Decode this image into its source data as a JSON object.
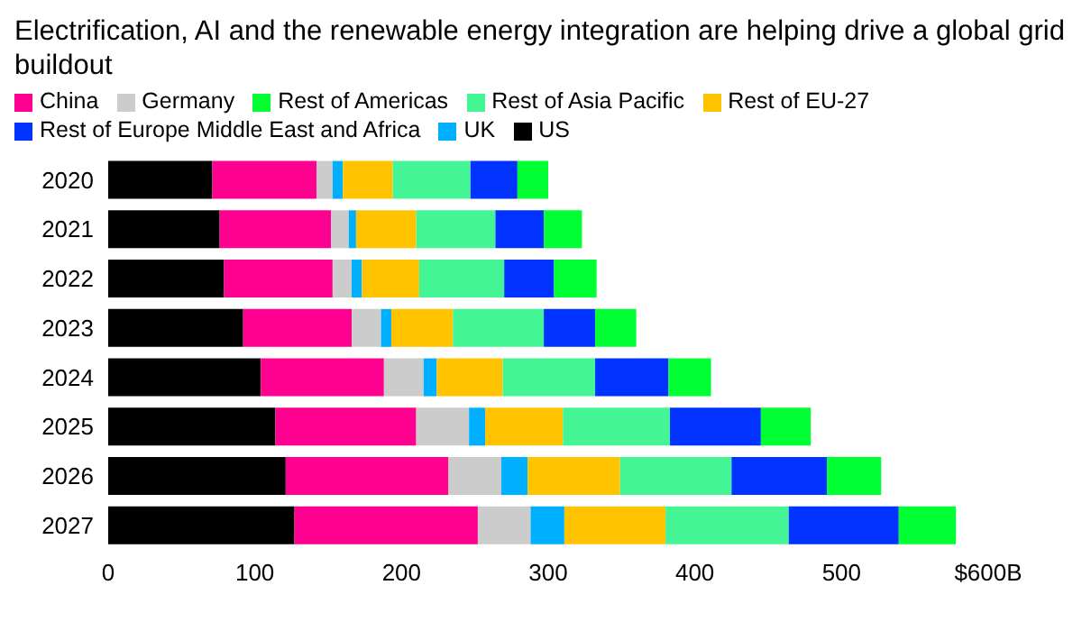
{
  "chart_data": {
    "type": "bar",
    "orientation": "horizontal",
    "stacked": true,
    "title": "Electrification, AI and the renewable energy integration are helping drive a global grid buildout",
    "categories": [
      "2020",
      "2021",
      "2022",
      "2023",
      "2024",
      "2025",
      "2026",
      "2027"
    ],
    "series": [
      {
        "name": "US",
        "color": "#000000",
        "values": [
          71,
          76,
          79,
          92,
          104,
          114,
          121,
          127
        ]
      },
      {
        "name": "China",
        "color": "#ff0090",
        "values": [
          71,
          76,
          74,
          74,
          84,
          96,
          111,
          125
        ]
      },
      {
        "name": "Germany",
        "color": "#cccccc",
        "values": [
          11,
          12,
          13,
          20,
          27,
          36,
          36,
          36
        ]
      },
      {
        "name": "UK",
        "color": "#00b0ff",
        "values": [
          7,
          5,
          7,
          7,
          9,
          11,
          18,
          23
        ]
      },
      {
        "name": "Rest of EU-27",
        "color": "#ffc300",
        "values": [
          34,
          41,
          39,
          42,
          45,
          53,
          63,
          69
        ]
      },
      {
        "name": "Rest of Asia Pacific",
        "color": "#44f596",
        "values": [
          53,
          54,
          58,
          62,
          63,
          73,
          76,
          84
        ]
      },
      {
        "name": "Rest of Europe Middle East and Africa",
        "color": "#0033ff",
        "values": [
          32,
          33,
          34,
          35,
          50,
          62,
          65,
          75
        ]
      },
      {
        "name": "Rest of Americas",
        "color": "#00ff33",
        "values": [
          21,
          26,
          29,
          28,
          29,
          34,
          37,
          39
        ]
      }
    ],
    "xlim": [
      0,
      600
    ],
    "xticks": [
      0,
      100,
      200,
      300,
      400,
      500,
      {
        "value": 600,
        "label": "$600B"
      }
    ],
    "grid": false,
    "legend": "top"
  }
}
